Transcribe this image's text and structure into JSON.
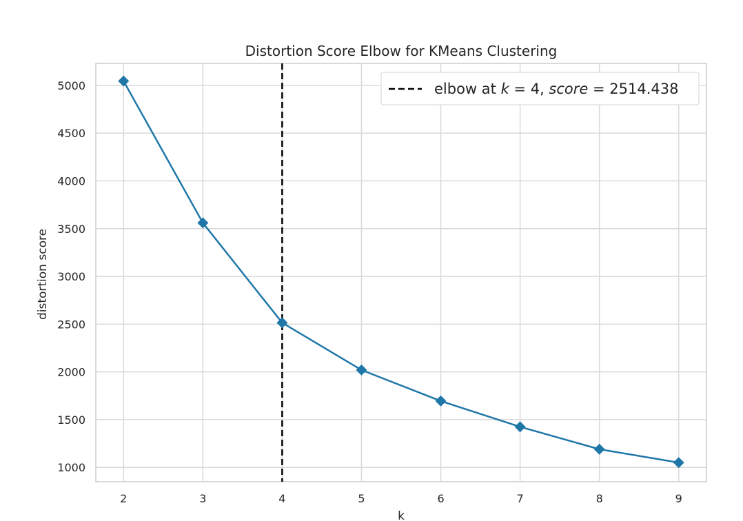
{
  "chart_data": {
    "type": "line",
    "title": "Distortion Score Elbow for KMeans Clustering",
    "xlabel": "k",
    "ylabel": "distortion score",
    "x": [
      2,
      3,
      4,
      5,
      6,
      7,
      8,
      9
    ],
    "series": [
      {
        "values": [
          5045,
          3560,
          2514.438,
          2020,
          1695,
          1425,
          1190,
          1050
        ],
        "color": "#1f77a8",
        "marker": "diamond"
      }
    ],
    "xlim": [
      1.65,
      9.35
    ],
    "ylim": [
      850,
      5230
    ],
    "xticks": [
      "2",
      "3",
      "4",
      "5",
      "6",
      "7",
      "8",
      "9"
    ],
    "yticks": [
      "1000",
      "1500",
      "2000",
      "2500",
      "3000",
      "3500",
      "4000",
      "4500",
      "5000"
    ],
    "grid": true,
    "elbow": {
      "k": 4,
      "score": 2514.438,
      "line_style": "dashed",
      "color": "#000000"
    },
    "legend": {
      "placement": "top-right",
      "text_prefix": "elbow at ",
      "k_symbol": "k",
      "eq": " = ",
      "k_value": "4",
      "comma": ", ",
      "score_symbol": "score",
      "score_value": "2514.438"
    }
  }
}
